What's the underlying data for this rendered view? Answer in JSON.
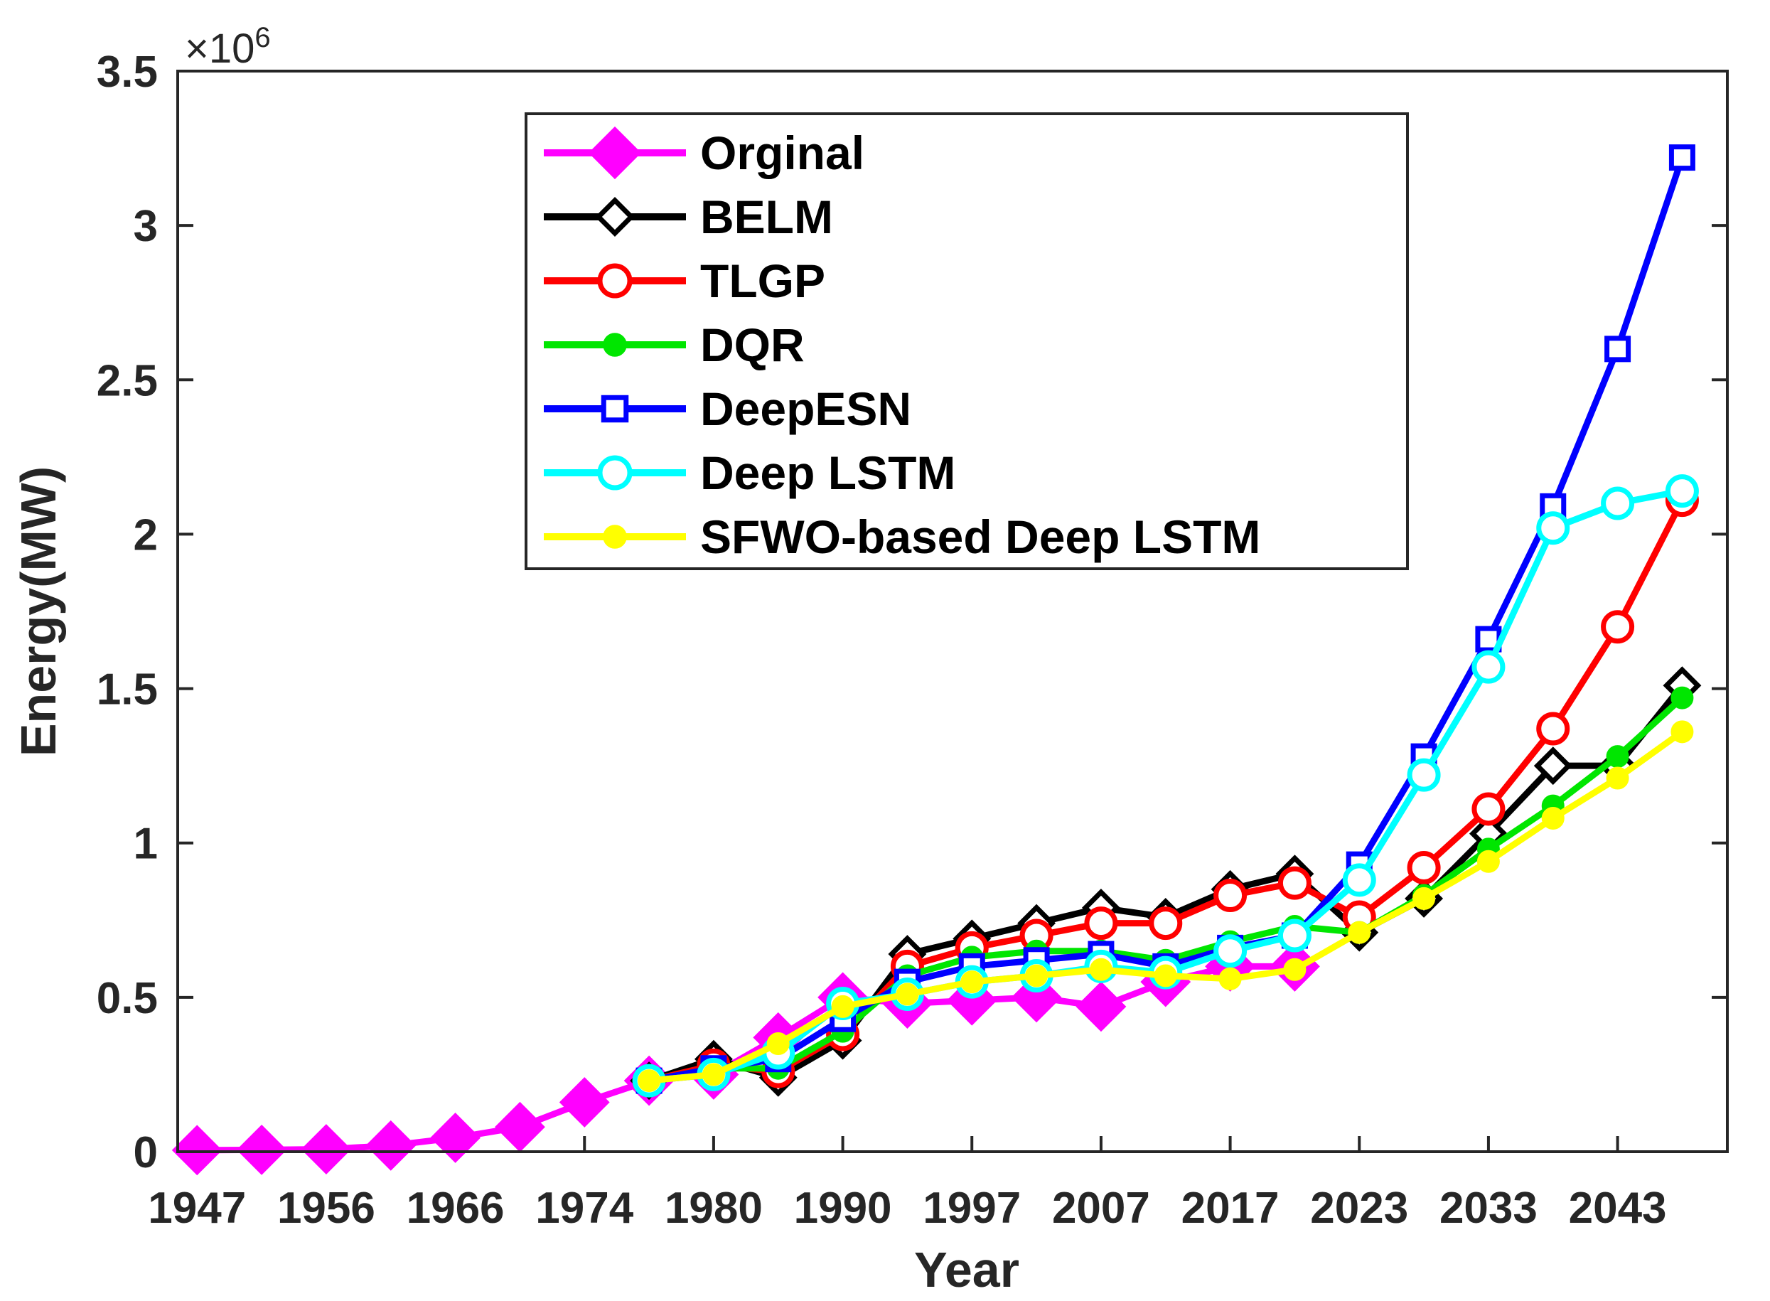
{
  "chart_data": {
    "type": "line",
    "xlabel": "Year",
    "ylabel": "Energy(MW)",
    "y_multiplier": {
      "base": "×10",
      "exponent": "6"
    },
    "ylim": [
      0,
      3.5
    ],
    "y_ticks": [
      {
        "value": 0,
        "label": "0"
      },
      {
        "value": 0.5,
        "label": "0.5"
      },
      {
        "value": 1,
        "label": "1"
      },
      {
        "value": 1.5,
        "label": "1.5"
      },
      {
        "value": 2,
        "label": "2"
      },
      {
        "value": 2.5,
        "label": "2.5"
      },
      {
        "value": 3,
        "label": "3"
      },
      {
        "value": 3.5,
        "label": "3.5"
      }
    ],
    "x_index_range": [
      -0.3,
      23.7
    ],
    "x_ticks": [
      {
        "index": 0,
        "label": "1947"
      },
      {
        "index": 2,
        "label": "1956"
      },
      {
        "index": 4,
        "label": "1966"
      },
      {
        "index": 6,
        "label": "1974"
      },
      {
        "index": 8,
        "label": "1980"
      },
      {
        "index": 10,
        "label": "1990"
      },
      {
        "index": 12,
        "label": "1997"
      },
      {
        "index": 14,
        "label": "2007"
      },
      {
        "index": 16,
        "label": "2017"
      },
      {
        "index": 18,
        "label": "2023"
      },
      {
        "index": 20,
        "label": "2033"
      },
      {
        "index": 22,
        "label": "2043"
      }
    ],
    "legend_position": "top-center",
    "series": [
      {
        "name": "Orginal",
        "color": "#ff00ff",
        "marker": "diamond-filled",
        "start_index": 0,
        "values": [
          0.005,
          0.006,
          0.008,
          0.02,
          0.045,
          0.08,
          0.16,
          0.23,
          0.25,
          0.37,
          0.5,
          0.48,
          0.49,
          0.5,
          0.47,
          0.55,
          0.6,
          0.6
        ]
      },
      {
        "name": "BELM",
        "color": "#000000",
        "marker": "diamond-open",
        "start_index": 7,
        "values": [
          0.23,
          0.3,
          0.24,
          0.36,
          0.64,
          0.69,
          0.74,
          0.79,
          0.76,
          0.85,
          0.9,
          0.71,
          0.82,
          1.03,
          1.25,
          1.25,
          1.51
        ]
      },
      {
        "name": "TLGP",
        "color": "#ff0000",
        "marker": "circle-open",
        "start_index": 7,
        "values": [
          0.23,
          0.28,
          0.26,
          0.38,
          0.6,
          0.66,
          0.7,
          0.74,
          0.74,
          0.83,
          0.87,
          0.76,
          0.92,
          1.11,
          1.37,
          1.7,
          2.11
        ]
      },
      {
        "name": "DQR",
        "color": "#00e600",
        "marker": "circle-filled",
        "start_index": 7,
        "values": [
          0.23,
          0.27,
          0.27,
          0.39,
          0.57,
          0.63,
          0.65,
          0.65,
          0.62,
          0.68,
          0.73,
          0.71,
          0.83,
          0.98,
          1.12,
          1.28,
          1.47
        ]
      },
      {
        "name": "DeepESN",
        "color": "#0000ff",
        "marker": "square-open",
        "start_index": 7,
        "values": [
          0.23,
          0.27,
          0.3,
          0.43,
          0.55,
          0.6,
          0.62,
          0.64,
          0.6,
          0.66,
          0.7,
          0.93,
          1.28,
          1.66,
          2.09,
          2.6,
          3.22
        ]
      },
      {
        "name": "Deep LSTM",
        "color": "#00ffff",
        "marker": "circle-open",
        "start_index": 7,
        "values": [
          0.23,
          0.25,
          0.32,
          0.48,
          0.51,
          0.55,
          0.57,
          0.6,
          0.58,
          0.65,
          0.7,
          0.88,
          1.22,
          1.57,
          2.02,
          2.1,
          2.14
        ]
      },
      {
        "name": "SFWO-based Deep LSTM",
        "color": "#ffff00",
        "marker": "circle-filled",
        "start_index": 7,
        "values": [
          0.23,
          0.25,
          0.35,
          0.47,
          0.51,
          0.55,
          0.57,
          0.59,
          0.57,
          0.56,
          0.59,
          0.71,
          0.82,
          0.94,
          1.08,
          1.21,
          1.36
        ]
      }
    ]
  }
}
